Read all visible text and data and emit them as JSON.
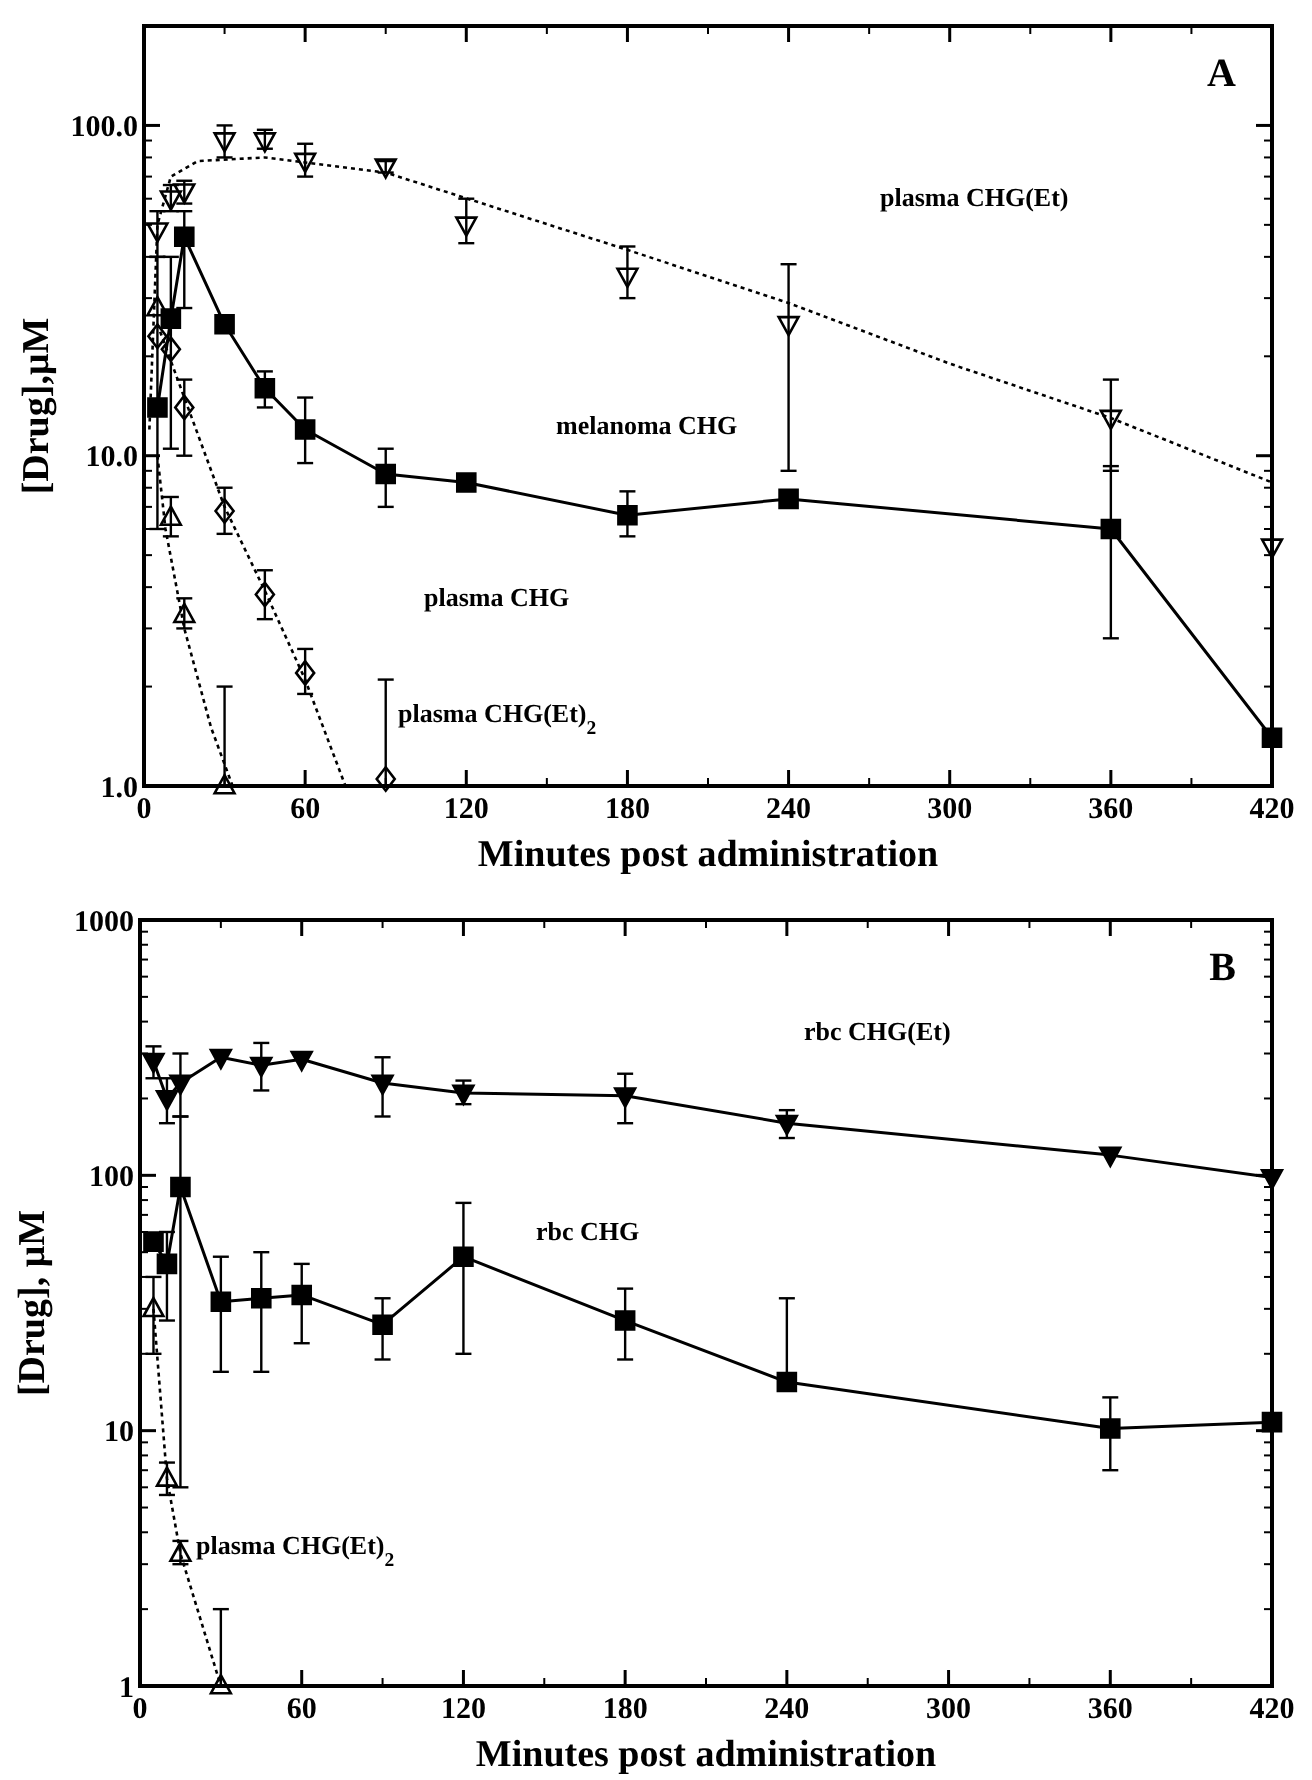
{
  "chart_data": [
    {
      "type": "line",
      "log": "y",
      "xlabel": "Minutes post administration",
      "ylabel": "[Drug],μM",
      "xlim": [
        0,
        420
      ],
      "xticks": [
        0,
        60,
        120,
        180,
        240,
        300,
        360,
        420
      ],
      "ylim": [
        1,
        200
      ],
      "yticks": [
        {
          "value": 1,
          "label": "1.0"
        },
        {
          "value": 10,
          "label": "10.0"
        },
        {
          "value": 100,
          "label": "100.0"
        }
      ],
      "grid": false,
      "annotations": [
        "A",
        "plasma CHG(Et)",
        "melanoma CHG",
        "plasma CHG",
        "plasma CHG(Et)$_{2}$"
      ],
      "series": [
        {
          "type": "scatter",
          "color": "#000000",
          "marker": "triangle-down-open",
          "x": [
            5,
            10,
            15,
            30,
            45,
            60,
            90,
            120,
            180,
            240,
            360,
            420
          ],
          "values": [
            48,
            60,
            63,
            90,
            90,
            78,
            75,
            50,
            35,
            25,
            13,
            5.3
          ],
          "errors": [
            [
              40,
              55
            ],
            [
              55,
              66
            ],
            [
              58,
              68
            ],
            [
              80,
              100
            ],
            [
              85,
              97
            ],
            [
              70,
              88
            ],
            [
              72,
              78
            ],
            [
              44,
              60
            ],
            [
              30,
              43
            ],
            [
              9,
              38
            ],
            [
              9,
              17
            ],
            null
          ]
        },
        {
          "type": "line",
          "color": "#000000",
          "marker": "none",
          "line_style": "dotted",
          "x": [
            2,
            5,
            10,
            20,
            45,
            90,
            180,
            240,
            300,
            360,
            420
          ],
          "values": [
            12,
            50,
            70,
            78,
            80,
            72,
            42,
            29,
            19,
            13,
            8.3
          ]
        },
        {
          "type": "line",
          "color": "#000000",
          "marker": "square",
          "line_style": "solid",
          "x": [
            5,
            10,
            15,
            30,
            45,
            60,
            90,
            120,
            180,
            240,
            360,
            420
          ],
          "values": [
            14,
            26,
            46,
            25,
            16,
            12,
            8.8,
            8.3,
            6.6,
            7.4,
            6.0,
            1.4
          ],
          "errors": [
            [
              6,
              40
            ],
            [
              10.5,
              40
            ],
            [
              28,
              55
            ],
            null,
            [
              14,
              18
            ],
            [
              9.5,
              15
            ],
            [
              7,
              10.5
            ],
            null,
            [
              5.7,
              7.8
            ],
            null,
            [
              2.8,
              9.3
            ],
            null
          ]
        },
        {
          "type": "scatter",
          "color": "#000000",
          "marker": "diamond-open",
          "x": [
            5,
            10,
            15,
            30,
            45,
            60,
            90
          ],
          "values": [
            23,
            21,
            14,
            6.8,
            3.8,
            2.2,
            1.05
          ],
          "errors": [
            null,
            null,
            [
              10,
              17
            ],
            [
              5.8,
              8
            ],
            [
              3.2,
              4.5
            ],
            [
              1.9,
              2.6
            ],
            [
              1,
              2.1
            ]
          ]
        },
        {
          "type": "line",
          "color": "#000000",
          "marker": "none",
          "line_style": "dotted",
          "x": [
            5,
            15,
            30,
            45,
            60,
            75
          ],
          "values": [
            25,
            15,
            7,
            3.9,
            2.1,
            1.0
          ]
        },
        {
          "type": "scatter",
          "color": "#000000",
          "marker": "triangle-open",
          "x": [
            5,
            10,
            15,
            30
          ],
          "values": [
            28,
            6.5,
            3.3,
            1.0
          ],
          "errors": [
            null,
            [
              5.7,
              7.5
            ],
            [
              3,
              3.7
            ],
            [
              1,
              2
            ]
          ]
        },
        {
          "type": "line",
          "color": "#000000",
          "marker": "none",
          "line_style": "dotted",
          "x": [
            5,
            8,
            15,
            25,
            33
          ],
          "values": [
            10,
            6,
            3,
            1.5,
            1
          ]
        }
      ]
    },
    {
      "type": "line",
      "log": "y",
      "xlabel": "Minutes post administration",
      "ylabel": "[Drug], μM",
      "xlim": [
        0,
        420
      ],
      "xticks": [
        0,
        60,
        120,
        180,
        240,
        300,
        360,
        420
      ],
      "ylim": [
        1,
        1000
      ],
      "yticks": [
        1,
        10,
        100,
        1000
      ],
      "grid": false,
      "annotations": [
        "B",
        "rbc CHG(Et)",
        "rbc CHG",
        "plasma CHG(Et)$_{2}$"
      ],
      "series": [
        {
          "type": "line",
          "color": "#000000",
          "marker": "triangle-down",
          "line_style": "solid",
          "x": [
            5,
            10,
            15,
            30,
            45,
            60,
            90,
            120,
            180,
            240,
            360,
            420
          ],
          "values": [
            280,
            200,
            230,
            290,
            270,
            285,
            230,
            210,
            205,
            160,
            120,
            98
          ],
          "errors": [
            [
              240,
              320
            ],
            [
              160,
              240
            ],
            [
              170,
              300
            ],
            null,
            [
              215,
              330
            ],
            null,
            [
              170,
              290
            ],
            [
              190,
              235
            ],
            [
              160,
              250
            ],
            [
              140,
              180
            ],
            null,
            null
          ]
        },
        {
          "type": "line",
          "color": "#000000",
          "marker": "square",
          "line_style": "solid",
          "x": [
            5,
            10,
            15,
            30,
            45,
            60,
            90,
            120,
            180,
            240,
            360,
            420
          ],
          "values": [
            55,
            45,
            90,
            32,
            33,
            34,
            26,
            48,
            27,
            15.5,
            10.2,
            10.8
          ],
          "errors": [
            null,
            [
              27,
              60
            ],
            [
              6,
              170
            ],
            [
              17,
              48
            ],
            [
              17,
              50
            ],
            [
              22,
              45
            ],
            [
              19,
              33
            ],
            [
              20,
              78
            ],
            [
              19,
              36
            ],
            [
              15.5,
              33
            ],
            [
              7,
              13.5
            ],
            null
          ]
        },
        {
          "type": "line",
          "color": "#000000",
          "marker": "triangle-open",
          "line_style": "dotted",
          "x": [
            5,
            10,
            15,
            30
          ],
          "values": [
            30,
            6.5,
            3.3,
            1.0
          ],
          "errors": [
            [
              20,
              40
            ],
            [
              5.6,
              7.5
            ],
            [
              3,
              3.7
            ],
            [
              1,
              2
            ]
          ]
        }
      ]
    }
  ]
}
